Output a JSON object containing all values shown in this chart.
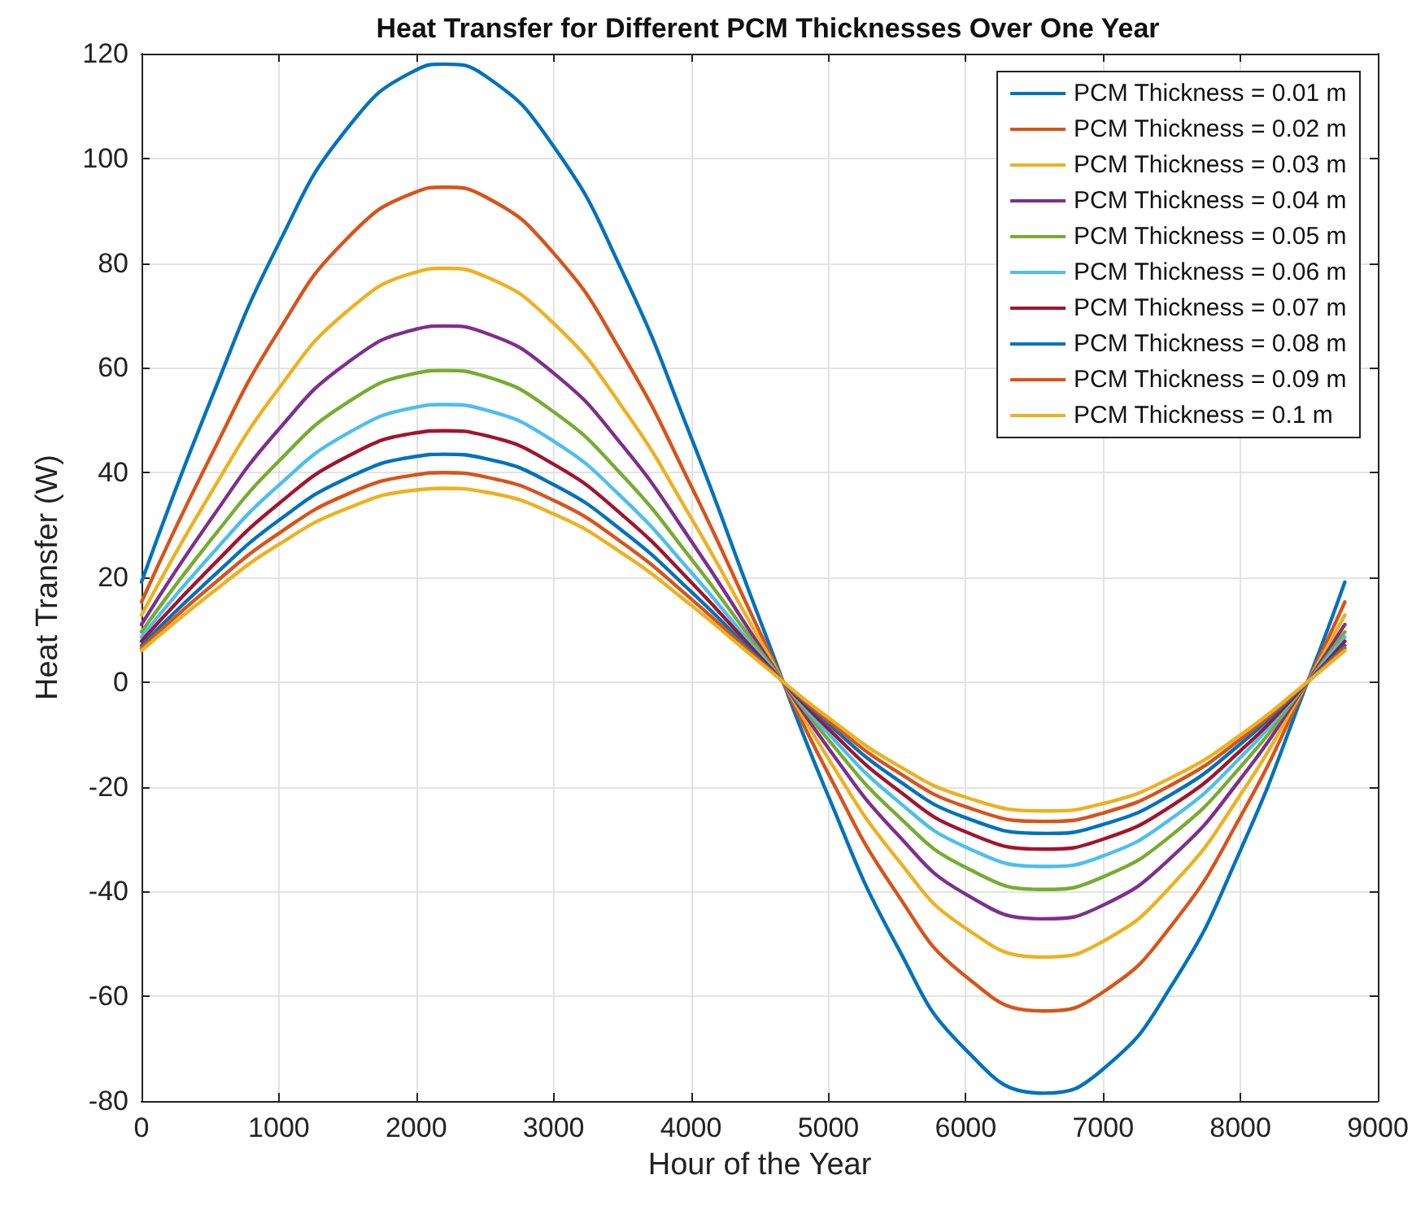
{
  "chart_data": {
    "type": "line",
    "title": "Heat Transfer for Different PCM Thicknesses Over One Year",
    "xlabel": "Hour of the Year",
    "ylabel": "Heat Transfer (W)",
    "x": [
      0,
      500,
      1000,
      1500,
      2000,
      2200,
      2500,
      3000,
      3500,
      4000,
      4500,
      5000,
      5500,
      6000,
      6570,
      7000,
      7500,
      8000,
      8500,
      8760
    ],
    "series": [
      {
        "name": "PCM Thickness = 0.01 m",
        "color": "#0072bd",
        "values": [
          19.1,
          53.6,
          83.8,
          105.8,
          116.9,
          118,
          115.8,
          102.3,
          78.4,
          46.8,
          12.0,
          -21.8,
          -50.4,
          -70.2,
          -78.5,
          -73.9,
          -57.9,
          -32.1,
          0.8,
          19.1
        ]
      },
      {
        "name": "PCM Thickness = 0.02 m",
        "color": "#d95319",
        "values": [
          15.3,
          42.9,
          67.1,
          84.8,
          93.6,
          94.5,
          92.7,
          81.9,
          62.7,
          37.5,
          9.6,
          -17.5,
          -40.4,
          -56.2,
          -62.8,
          -59.2,
          -46.4,
          -25.7,
          0.7,
          15.3
        ]
      },
      {
        "name": "PCM Thickness = 0.03 m",
        "color": "#edb120",
        "values": [
          12.8,
          35.9,
          56.1,
          70.9,
          78.3,
          79,
          77.5,
          68.5,
          52.5,
          31.4,
          8.1,
          -14.6,
          -33.7,
          -47.0,
          -52.5,
          -49.5,
          -38.8,
          -21.5,
          0.6,
          12.8
        ]
      },
      {
        "name": "PCM Thickness = 0.04 m",
        "color": "#7e2f8e",
        "values": [
          11.0,
          30.9,
          48.3,
          61.0,
          67.4,
          68,
          66.7,
          59.0,
          45.2,
          27.0,
          6.9,
          -12.6,
          -29.0,
          -40.5,
          -45.2,
          -42.6,
          -33.4,
          -18.5,
          0.5,
          11.0
        ]
      },
      {
        "name": "PCM Thickness = 0.05 m",
        "color": "#77ac30",
        "values": [
          9.6,
          27.0,
          42.2,
          53.4,
          59.0,
          59.5,
          58.4,
          51.6,
          39.5,
          23.6,
          6.1,
          -11.0,
          -25.4,
          -35.4,
          -39.6,
          -37.2,
          -29.2,
          -16.2,
          0.4,
          9.6
        ]
      },
      {
        "name": "PCM Thickness = 0.06 m",
        "color": "#4dbeee",
        "values": [
          8.6,
          24.1,
          37.6,
          47.5,
          52.5,
          53,
          52.0,
          46.0,
          35.2,
          21.0,
          5.4,
          -9.8,
          -22.6,
          -31.5,
          -35.2,
          -33.2,
          -26.0,
          -14.4,
          0.4,
          8.6
        ]
      },
      {
        "name": "PCM Thickness = 0.07 m",
        "color": "#a2142f",
        "values": [
          7.8,
          21.8,
          34.1,
          43.1,
          47.6,
          48,
          47.1,
          41.6,
          31.9,
          19.1,
          4.9,
          -8.9,
          -20.5,
          -28.6,
          -31.9,
          -30.0,
          -23.6,
          -13.1,
          0.3,
          7.8
        ]
      },
      {
        "name": "PCM Thickness = 0.08 m",
        "color": "#0072bd",
        "values": [
          7.0,
          19.7,
          30.9,
          39.0,
          43.1,
          43.5,
          42.7,
          37.7,
          28.9,
          17.3,
          4.4,
          -8.0,
          -18.6,
          -25.9,
          -28.9,
          -27.2,
          -21.4,
          -11.8,
          0.3,
          7.0
        ]
      },
      {
        "name": "PCM Thickness = 0.09 m",
        "color": "#d95319",
        "values": [
          6.5,
          18.2,
          28.4,
          35.9,
          39.6,
          40,
          39.2,
          34.7,
          26.6,
          15.9,
          4.1,
          -7.4,
          -17.1,
          -23.8,
          -26.6,
          -25.0,
          -19.6,
          -10.9,
          0.3,
          6.5
        ]
      },
      {
        "name": "PCM Thickness = 0.1 m",
        "color": "#edb120",
        "values": [
          6.0,
          16.8,
          26.3,
          33.2,
          36.7,
          37,
          36.3,
          32.1,
          24.6,
          14.7,
          3.8,
          -6.8,
          -15.8,
          -22.0,
          -24.6,
          -23.2,
          -18.2,
          -10.1,
          0.3,
          6.0
        ]
      }
    ],
    "xlim": [
      0,
      9000
    ],
    "ylim": [
      -80,
      120
    ],
    "xticks": [
      0,
      1000,
      2000,
      3000,
      4000,
      5000,
      6000,
      7000,
      8000,
      9000
    ],
    "yticks": [
      -80,
      -60,
      -40,
      -20,
      0,
      20,
      40,
      60,
      80,
      100,
      120
    ],
    "grid": true,
    "legend": "top right",
    "marker": "none",
    "line_style": "solid"
  }
}
